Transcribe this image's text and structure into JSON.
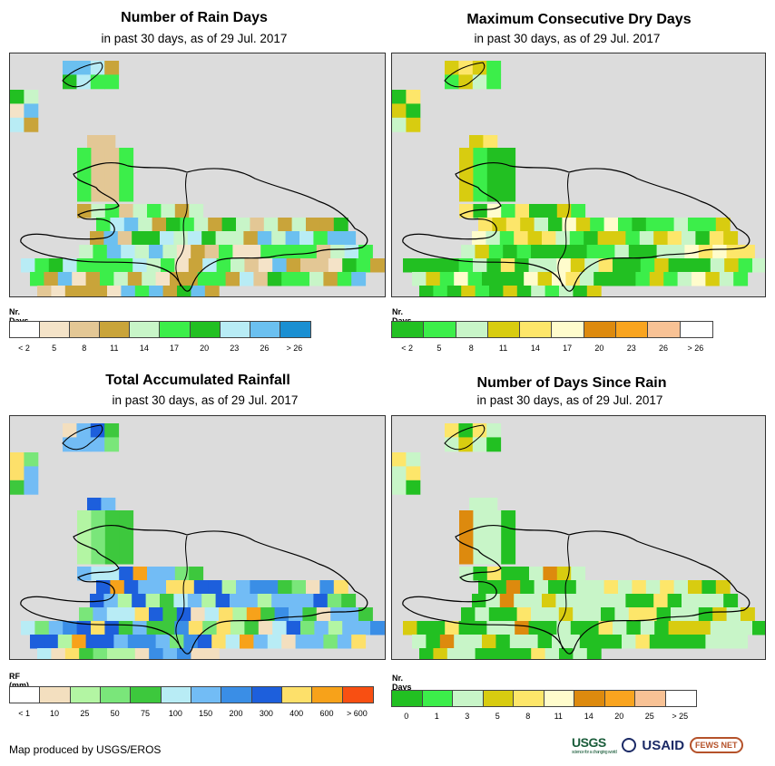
{
  "footer": "Map produced by USGS/EROS",
  "logos": {
    "usgs": "USGS",
    "usgs_tagline": "science for a changing world",
    "usaid": "USAID",
    "fews": "FEWS NET"
  },
  "panels": [
    {
      "title": "Number of Rain Days",
      "subtitle": "in past 30 days, as of 29 Jul. 2017",
      "legend_title": "Nr. Days",
      "legend_colors": [
        "#ffffff",
        "#f4e3c8",
        "#e3c795",
        "#c9a43a",
        "#c8f5c8",
        "#3cee4a",
        "#22c022",
        "#b8ecf5",
        "#6bc0f0",
        "#1a8fd2"
      ],
      "legend_labels": [
        "< 2",
        "5",
        "8",
        "11",
        "14",
        "17",
        "20",
        "23",
        "26",
        "> 26"
      ]
    },
    {
      "title": "Maximum Consecutive Dry Days",
      "subtitle": "in past 30 days, as of 29 Jul. 2017",
      "legend_title": "Nr. Days",
      "legend_colors": [
        "#22c022",
        "#3cee4a",
        "#c8f5c8",
        "#d8cc10",
        "#fde66a",
        "#fffccc",
        "#dd8a0e",
        "#f9a41f",
        "#f8c295",
        "#ffffff"
      ],
      "legend_labels": [
        "< 2",
        "5",
        "8",
        "11",
        "14",
        "17",
        "20",
        "23",
        "26",
        "> 26"
      ]
    },
    {
      "title": "Total Accumulated Rainfall",
      "subtitle": "in past 30 days, as of 29 Jul. 2017",
      "legend_title": "RF (mm)",
      "legend_colors": [
        "#ffffff",
        "#f3dfbf",
        "#b3f5a3",
        "#7ae67a",
        "#3dc83d",
        "#b8ecf5",
        "#72bcf5",
        "#3a8ee6",
        "#1d5fdc",
        "#fde06a",
        "#f7a21a",
        "#f84f12"
      ],
      "legend_labels": [
        "< 1",
        "10",
        "25",
        "50",
        "75",
        "100",
        "150",
        "200",
        "300",
        "400",
        "600",
        "> 600"
      ]
    },
    {
      "title": "Number of Days Since Rain",
      "subtitle": "in past 30 days, as of 29 Jul. 2017",
      "legend_title": "Nr. Days",
      "legend_colors": [
        "#22c022",
        "#3cee4a",
        "#c8f5c8",
        "#d8cc10",
        "#fde66a",
        "#fffccc",
        "#dd8a0e",
        "#f9a41f",
        "#f8c295",
        "#ffffff"
      ],
      "legend_labels": [
        "0",
        "1",
        "3",
        "5",
        "8",
        "11",
        "14",
        "20",
        "25",
        "> 25"
      ]
    }
  ]
}
